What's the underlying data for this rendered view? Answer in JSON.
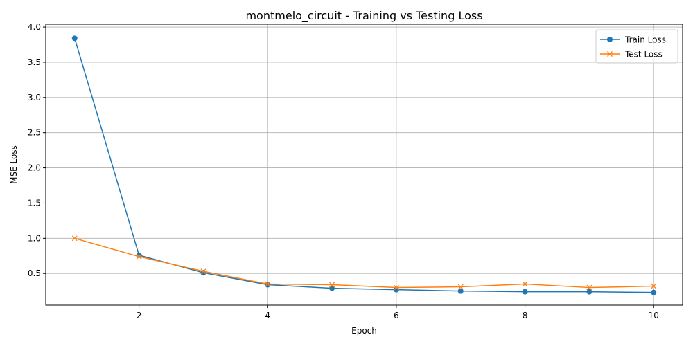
{
  "chart_data": {
    "type": "line",
    "title": "montmelo_circuit - Training vs Testing Loss",
    "xlabel": "Epoch",
    "ylabel": "MSE Loss",
    "x": [
      1,
      2,
      3,
      4,
      5,
      6,
      7,
      8,
      9,
      10
    ],
    "xlim": [
      0.55,
      10.45
    ],
    "ylim": [
      0.05,
      4.04
    ],
    "xticks": [
      2,
      4,
      6,
      8,
      10
    ],
    "xtick_labels": [
      "2",
      "4",
      "6",
      "8",
      "10"
    ],
    "yticks": [
      0.5,
      1.0,
      1.5,
      2.0,
      2.5,
      3.0,
      3.5,
      4.0
    ],
    "ytick_labels": [
      "0.5",
      "1.0",
      "1.5",
      "2.0",
      "2.5",
      "3.0",
      "3.5",
      "4.0"
    ],
    "grid": true,
    "legend_position": "top-right",
    "series": [
      {
        "name": "Train Loss",
        "color": "#1f77b4",
        "marker": "circle",
        "values": [
          3.84,
          0.76,
          0.51,
          0.34,
          0.29,
          0.27,
          0.25,
          0.24,
          0.24,
          0.23
        ]
      },
      {
        "name": "Test Loss",
        "color": "#ff7f0e",
        "marker": "x",
        "values": [
          1.0,
          0.74,
          0.53,
          0.35,
          0.34,
          0.3,
          0.31,
          0.35,
          0.3,
          0.32
        ]
      }
    ]
  }
}
